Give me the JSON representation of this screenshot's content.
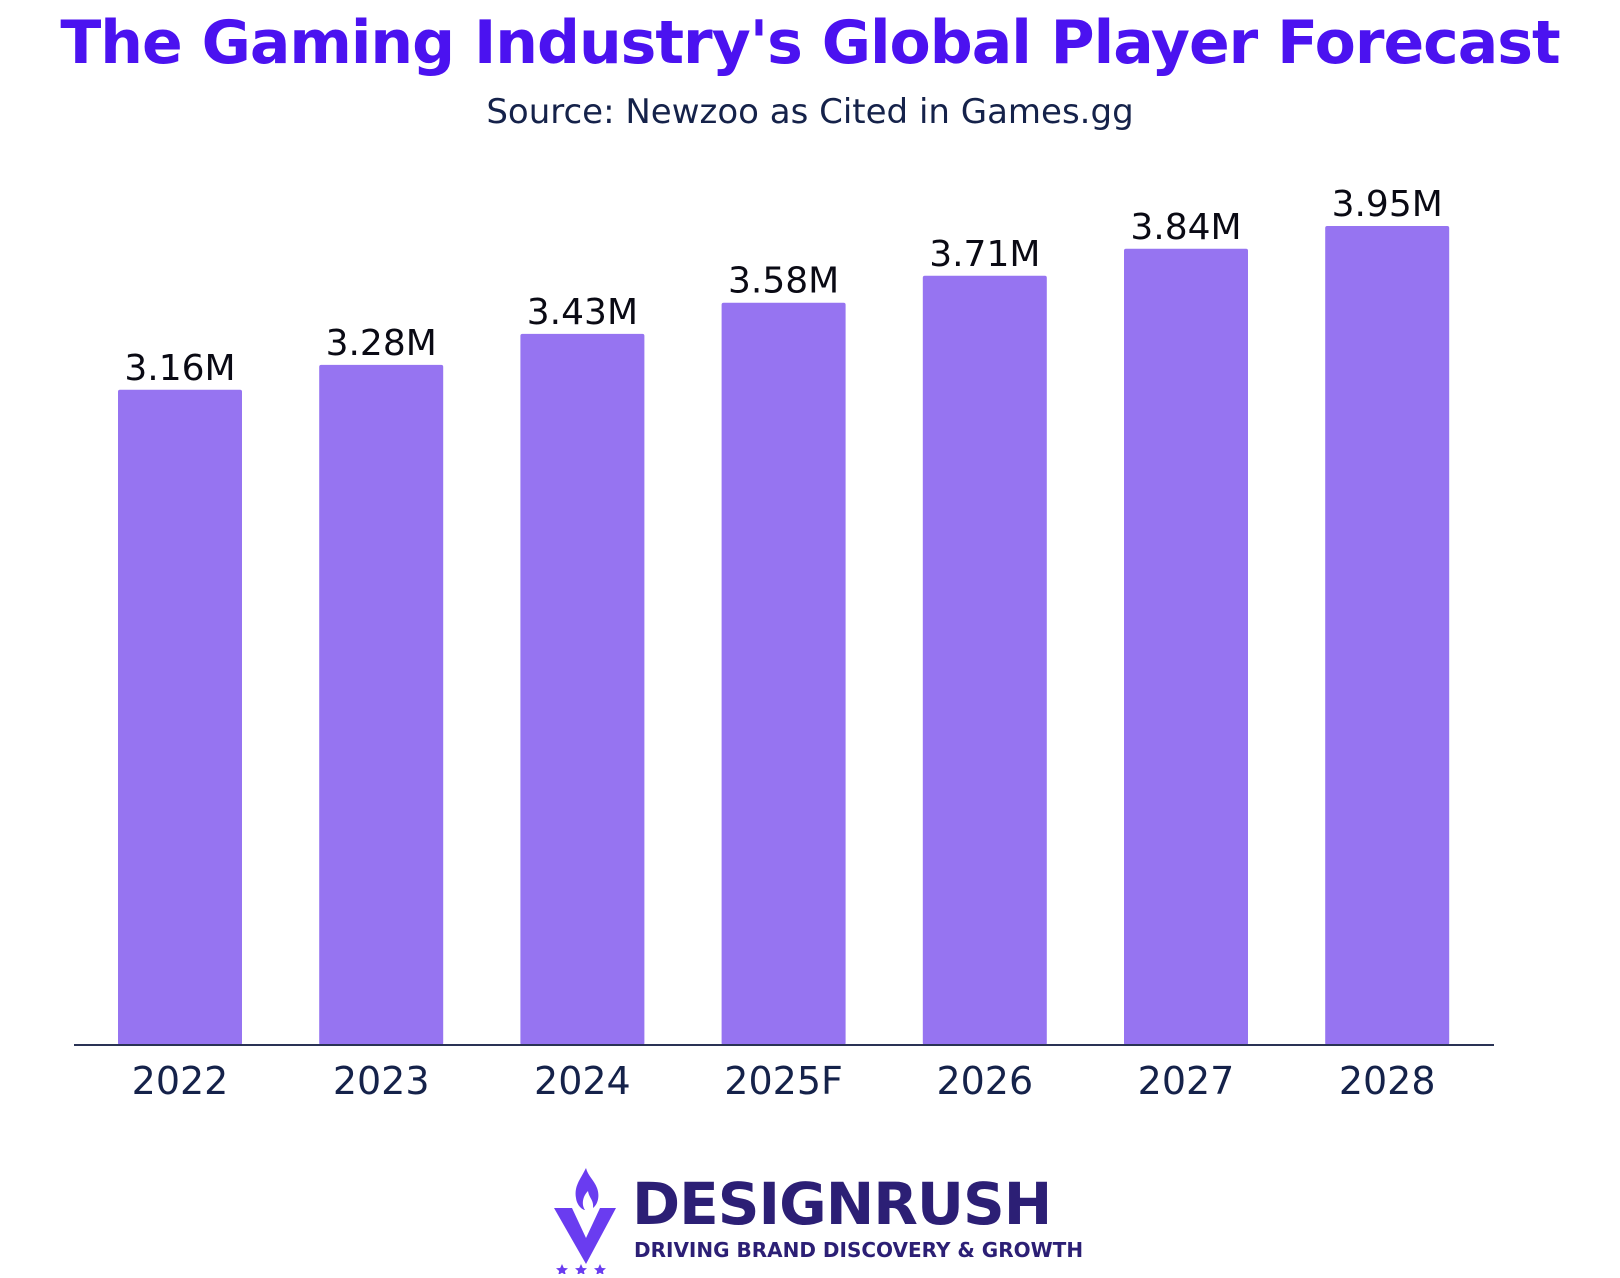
{
  "colors": {
    "title": "#4b12f0",
    "subtitle": "#15224a",
    "bar": "#9674f1",
    "value_label": "#0a0a14",
    "axis": "#2a3355",
    "tick": "#15224a",
    "brand": "#2c1f75",
    "brand_accent": "#6a3cf0"
  },
  "chart_data": {
    "type": "bar",
    "title": "The Gaming Industry's Global Player Forecast",
    "subtitle": "Source: Newzoo as Cited in Games.gg",
    "categories": [
      "2022",
      "2023",
      "2024",
      "2025F",
      "2026",
      "2027",
      "2028"
    ],
    "values": [
      3.16,
      3.28,
      3.43,
      3.58,
      3.71,
      3.84,
      3.95
    ],
    "value_labels": [
      "3.16M",
      "3.28M",
      "3.43M",
      "3.58M",
      "3.71M",
      "3.84M",
      "3.95M"
    ],
    "ylim": [
      0,
      3.95
    ],
    "grid": false,
    "legend": "none"
  },
  "brand": {
    "name": "DESIGNRUSH",
    "tagline": "DRIVING BRAND DISCOVERY & GROWTH"
  },
  "icons": {
    "logo": "flame-v-stars-icon"
  }
}
